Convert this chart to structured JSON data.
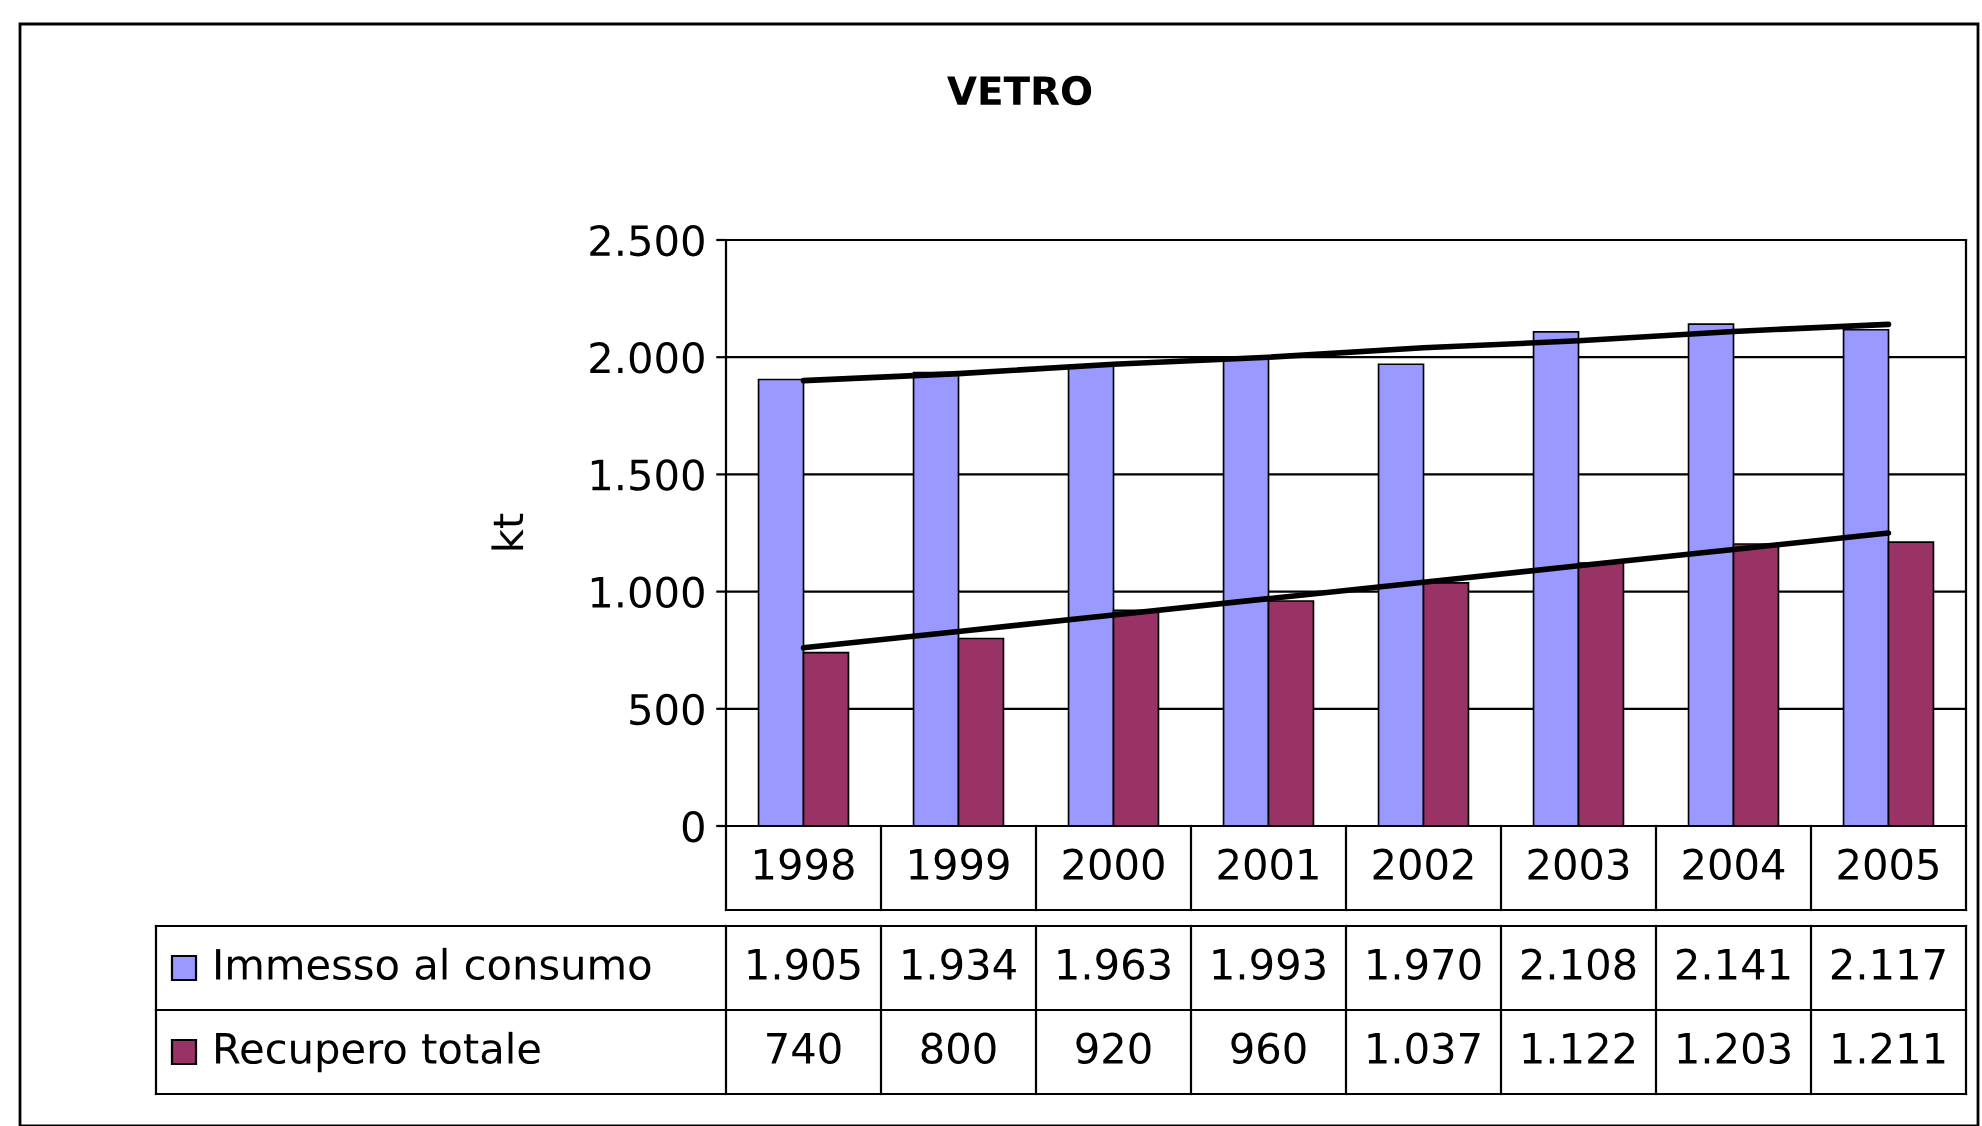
{
  "chart_data": {
    "type": "bar",
    "title": "VETRO",
    "ylabel": "kt",
    "categories": [
      "1998",
      "1999",
      "2000",
      "2001",
      "2002",
      "2003",
      "2004",
      "2005"
    ],
    "series": [
      {
        "name": "Immesso al consumo",
        "color": "#9999ff",
        "values": [
          1905,
          1934,
          1963,
          1993,
          1970,
          2108,
          2141,
          2117
        ],
        "value_labels": [
          "1.905",
          "1.934",
          "1.963",
          "1.993",
          "1.970",
          "2.108",
          "2.141",
          "2.117"
        ]
      },
      {
        "name": "Recupero totale",
        "color": "#993366",
        "values": [
          740,
          800,
          920,
          960,
          1037,
          1122,
          1203,
          1211
        ],
        "value_labels": [
          "740",
          "800",
          "920",
          "960",
          "1.037",
          "1.122",
          "1.203",
          "1.211"
        ]
      },
      {
        "type": "line",
        "color": "#000000",
        "values": [
          1900,
          1930,
          1970,
          2000,
          2040,
          2070,
          2110,
          2140
        ]
      },
      {
        "type": "line",
        "color": "#000000",
        "values": [
          760,
          830,
          900,
          970,
          1040,
          1110,
          1180,
          1250
        ]
      }
    ],
    "ylim": [
      0,
      2500
    ],
    "yticks": [
      0,
      {
        "value": 500,
        "label": "500"
      },
      {
        "value": 1000,
        "label": "1.000"
      },
      {
        "value": 1500,
        "label": "1.500"
      },
      {
        "value": 2000,
        "label": "2.000"
      },
      {
        "value": 2500,
        "label": "2.500"
      }
    ],
    "grid": "y",
    "legend": "bottom"
  }
}
